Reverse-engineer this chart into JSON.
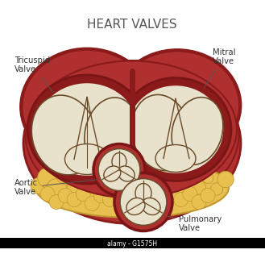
{
  "title": "HEART VALVES",
  "title_fontsize": 11,
  "title_color": "#555555",
  "labels": {
    "tricuspid": "Tricuspid\nValve",
    "mitral": "Mitral\nValve",
    "aortic": "Aortic\nValve",
    "pulmonary": "Pulmonary\nValve"
  },
  "colors": {
    "background": "#ffffff",
    "dark_red": "#8b1a1a",
    "mid_red": "#b03030",
    "light_red": "#cc4444",
    "inner_red": "#7a1515",
    "cusp_cream": "#e8e2cc",
    "cusp_shadow": "#ccc4a8",
    "cusp_line": "#6b4c2a",
    "fatty": "#e8c050",
    "fatty_dark": "#c09830",
    "label_color": "#333333",
    "line_color": "#555555"
  }
}
